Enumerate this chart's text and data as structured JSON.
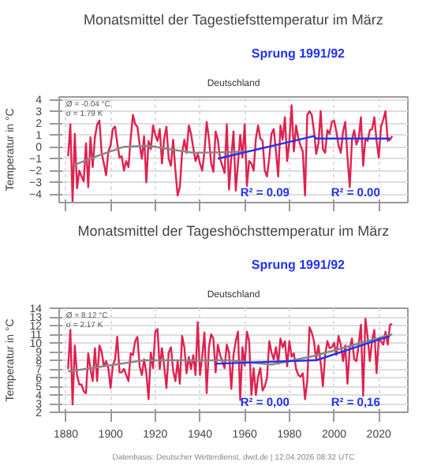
{
  "chart_data": [
    {
      "type": "line",
      "title": "Monatsmittel der Tagestiefsttemperatur im März",
      "subtitle": "Deutschland",
      "ylabel": "Temperatur in °C",
      "xlim": [
        1877,
        2033
      ],
      "ylim": [
        -4.7,
        4.2
      ],
      "xticks": [
        1880,
        1900,
        1920,
        1940,
        1960,
        1980,
        2000,
        2020
      ],
      "yticks": [
        -4,
        -3,
        -2,
        -1,
        0,
        1,
        2,
        3,
        4
      ],
      "tick_labels": "y",
      "grid": true,
      "marker": "none",
      "line_style": "solid",
      "x": [
        1881,
        1882,
        1883,
        1884,
        1885,
        1886,
        1887,
        1888,
        1889,
        1890,
        1891,
        1892,
        1893,
        1894,
        1895,
        1896,
        1897,
        1898,
        1899,
        1900,
        1901,
        1902,
        1903,
        1904,
        1905,
        1906,
        1907,
        1908,
        1909,
        1910,
        1911,
        1912,
        1913,
        1914,
        1915,
        1916,
        1917,
        1918,
        1919,
        1920,
        1921,
        1922,
        1923,
        1924,
        1925,
        1926,
        1927,
        1928,
        1929,
        1930,
        1931,
        1932,
        1933,
        1934,
        1935,
        1936,
        1937,
        1938,
        1939,
        1940,
        1941,
        1942,
        1943,
        1944,
        1945,
        1946,
        1947,
        1948,
        1949,
        1950,
        1951,
        1952,
        1953,
        1954,
        1955,
        1956,
        1957,
        1958,
        1959,
        1960,
        1961,
        1962,
        1963,
        1964,
        1965,
        1966,
        1967,
        1968,
        1969,
        1970,
        1971,
        1972,
        1973,
        1974,
        1975,
        1976,
        1977,
        1978,
        1979,
        1980,
        1981,
        1982,
        1983,
        1984,
        1985,
        1986,
        1987,
        1988,
        1989,
        1990,
        1991,
        1992,
        1993,
        1994,
        1995,
        1996,
        1997,
        1998,
        1999,
        2000,
        2001,
        2002,
        2003,
        2004,
        2005,
        2006,
        2007,
        2008,
        2009,
        2010,
        2011,
        2012,
        2013,
        2014,
        2015,
        2016,
        2017,
        2018,
        2019,
        2020,
        2021,
        2022,
        2023,
        2024,
        2025,
        2026
      ],
      "series": [
        {
          "color": "#e0214f",
          "values": [
            -0.8,
            1.9,
            -4.6,
            1.1,
            -3.5,
            -2.0,
            -2.5,
            -2.9,
            0.3,
            -3.4,
            0.8,
            -1.7,
            0.8,
            1.9,
            2.2,
            -0.5,
            -1.4,
            -2.4,
            -0.4,
            0.1,
            1.5,
            1.7,
            0.3,
            -0.9,
            -0.8,
            -2.0,
            -1.2,
            -1.7,
            0.7,
            2.7,
            1.9,
            1.7,
            0.2,
            -1.0,
            0.9,
            -3.0,
            0.5,
            -0.2,
            1.8,
            1.0,
            0.5,
            1.5,
            -1.4,
            0.7,
            1.7,
            -1.0,
            -1.6,
            0.6,
            -2.0,
            -4.1,
            -3.4,
            -0.5,
            0.6,
            -0.5,
            1.8,
            1.1,
            -0.1,
            -1.2,
            -0.6,
            -1.4,
            -2.0,
            -0.4,
            2.1,
            0.7,
            -1.4,
            -2.1,
            1.3,
            0.6,
            -1.0,
            -1.6,
            -2.2,
            1.9,
            -3.6,
            -0.9,
            1.3,
            -3.7,
            -1.4,
            1.0,
            -0.9,
            1.9,
            -3.3,
            -1.2,
            -1.4,
            -2.0,
            0.7,
            1.8,
            0.7,
            0.5,
            -2.0,
            -2.5,
            -0.9,
            1.1,
            1.5,
            -0.4,
            -2.5,
            1.8,
            0.6,
            2.5,
            -1.2,
            0.5,
            3.5,
            -0.4,
            1.8,
            0.7,
            0.1,
            -0.4,
            -4.1,
            2.7,
            3.0,
            2.7,
            1.3,
            -0.6,
            0.3,
            3.0,
            -0.2,
            -0.5,
            1.4,
            1.1,
            2.1,
            2.2,
            1.3,
            0.1,
            -0.5,
            1.3,
            2.1,
            -0.9,
            -3.4,
            0.6,
            1.4,
            0.2,
            0.7,
            2.5,
            -1.6,
            0.7,
            0.5,
            1.4,
            1.5,
            2.5,
            0.5,
            -0.9,
            1.7,
            2.3,
            3.0,
            0.5,
            0.6,
            0.9
          ]
        },
        {
          "color": "#888888",
          "x": [
            1884,
            1895,
            1906,
            1917,
            1926,
            1937,
            1953,
            1960
          ],
          "values": [
            -1.5,
            -0.7,
            0.0,
            0.1,
            -0.2,
            -0.5,
            -0.45,
            -0.4
          ]
        },
        {
          "color": "#2233ee",
          "x": [
            1948,
            1991,
            1992,
            2025
          ],
          "values": [
            -1.0,
            0.9,
            0.7,
            0.7
          ]
        }
      ],
      "annotations": [
        "Ø = -0.04 °C",
        "σ = 1.79 K",
        "Sprung 1991/92",
        "R² = 0.09",
        "R² = 0.00"
      ]
    },
    {
      "type": "line",
      "title": "Monatsmittel der Tageshöchsttemperatur im März",
      "subtitle": "Deutschland",
      "ylabel": "Temperatur in °C",
      "xlim": [
        1877,
        2033
      ],
      "ylim": [
        2,
        14
      ],
      "xticks": [
        1880,
        1900,
        1920,
        1940,
        1960,
        1980,
        2000,
        2020
      ],
      "yticks": [
        2,
        3,
        4,
        5,
        6,
        7,
        8,
        9,
        10,
        11,
        12,
        13,
        14
      ],
      "grid": true,
      "marker": "none",
      "line_style": "solid",
      "x": [
        1881,
        1882,
        1883,
        1884,
        1885,
        1886,
        1887,
        1888,
        1889,
        1890,
        1891,
        1892,
        1893,
        1894,
        1895,
        1896,
        1897,
        1898,
        1899,
        1900,
        1901,
        1902,
        1903,
        1904,
        1905,
        1906,
        1907,
        1908,
        1909,
        1910,
        1911,
        1912,
        1913,
        1914,
        1915,
        1916,
        1917,
        1918,
        1919,
        1920,
        1921,
        1922,
        1923,
        1924,
        1925,
        1926,
        1927,
        1928,
        1929,
        1930,
        1931,
        1932,
        1933,
        1934,
        1935,
        1936,
        1937,
        1938,
        1939,
        1940,
        1941,
        1942,
        1943,
        1944,
        1945,
        1946,
        1947,
        1948,
        1949,
        1950,
        1951,
        1952,
        1953,
        1954,
        1955,
        1956,
        1957,
        1958,
        1959,
        1960,
        1961,
        1962,
        1963,
        1964,
        1965,
        1966,
        1967,
        1968,
        1969,
        1970,
        1971,
        1972,
        1973,
        1974,
        1975,
        1976,
        1977,
        1978,
        1979,
        1980,
        1981,
        1982,
        1983,
        1984,
        1985,
        1986,
        1987,
        1988,
        1989,
        1990,
        1991,
        1992,
        1993,
        1994,
        1995,
        1996,
        1997,
        1998,
        1999,
        2000,
        2001,
        2002,
        2003,
        2004,
        2005,
        2006,
        2007,
        2008,
        2009,
        2010,
        2011,
        2012,
        2013,
        2014,
        2015,
        2016,
        2017,
        2018,
        2019,
        2020,
        2021,
        2022,
        2023,
        2024,
        2025,
        2026
      ],
      "series": [
        {
          "color": "#e0214f",
          "values": [
            7.0,
            11.5,
            2.9,
            9.7,
            6.3,
            5.2,
            5.2,
            4.4,
            4.2,
            8.8,
            7.0,
            5.6,
            9.4,
            5.6,
            9.7,
            9.0,
            7.3,
            7.9,
            7.1,
            4.8,
            7.4,
            8.1,
            10.7,
            6.6,
            6.6,
            7.0,
            6.3,
            5.6,
            8.8,
            8.6,
            10.2,
            10.7,
            7.3,
            6.3,
            8.1,
            6.5,
            3.5,
            8.9,
            7.1,
            11.3,
            11.6,
            7.0,
            9.4,
            7.3,
            4.8,
            8.9,
            9.5,
            6.8,
            5.6,
            7.9,
            5.3,
            10.8,
            9.5,
            6.5,
            8.4,
            7.0,
            8.6,
            6.3,
            12.4,
            6.3,
            8.4,
            11.2,
            4.2,
            9.5,
            11.0,
            10.5,
            6.6,
            9.8,
            8.6,
            7.9,
            7.1,
            9.8,
            8.9,
            4.7,
            8.6,
            10.2,
            11.3,
            3.4,
            9.5,
            7.4,
            11.3,
            10.2,
            4.0,
            7.1,
            4.0,
            6.1,
            7.1,
            4.5,
            5.0,
            6.0,
            10.2,
            8.9,
            8.1,
            9.5,
            7.6,
            10.5,
            9.5,
            10.2,
            7.3,
            10.2,
            8.4,
            8.8,
            7.0,
            6.3,
            6.1,
            6.5,
            3.5,
            5.6,
            11.8,
            11.2,
            10.2,
            8.1,
            9.7,
            7.7,
            5.0,
            8.6,
            10.2,
            9.4,
            9.5,
            10.0,
            8.6,
            10.8,
            9.8,
            7.9,
            9.7,
            5.3,
            9.4,
            10.5,
            8.1,
            7.9,
            9.8,
            12.1,
            3.9,
            12.8,
            10.7,
            7.9,
            10.3,
            11.5,
            6.5,
            10.5,
            10.2,
            9.8,
            11.3,
            9.8,
            12.1,
            12.2
          ]
        },
        {
          "color": "#888888",
          "x": [
            1881,
            1915,
            1953,
            1972,
            1991,
            2026
          ],
          "values": [
            6.7,
            8.0,
            8.0,
            7.5,
            8.5,
            11.0
          ]
        },
        {
          "color": "#2233ee",
          "x": [
            1947,
            1991,
            1992,
            2025
          ],
          "values": [
            7.6,
            8.0,
            8.0,
            10.8
          ]
        }
      ],
      "annotations": [
        "Ø = 8.12 °C",
        "σ = 2.17 K",
        "Sprung 1991/92",
        "R² = 0,00",
        "R² = 0,16",
        "Datenbasis: Deutscher Wetterdienst, dwd.de | 12.04.2026 08:32 UTC"
      ]
    }
  ]
}
